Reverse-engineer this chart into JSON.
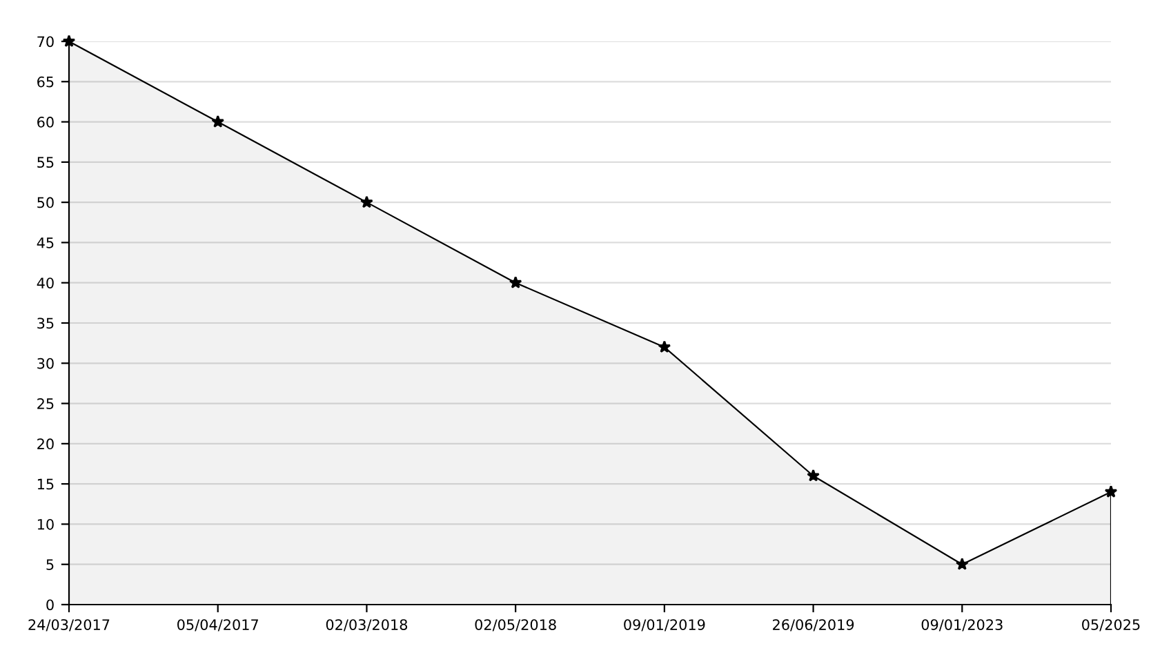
{
  "chart_data": {
    "type": "area",
    "categories": [
      "24/03/2017",
      "05/04/2017",
      "02/03/2018",
      "02/05/2018",
      "09/01/2019",
      "26/06/2019",
      "09/01/2023",
      "05/2025"
    ],
    "series": [
      {
        "color": "#000000",
        "values": [
          70,
          60,
          50,
          40,
          32,
          16,
          5,
          14
        ]
      }
    ],
    "ylim": [
      0,
      70
    ],
    "yticks": [
      0,
      5,
      10,
      15,
      20,
      25,
      30,
      35,
      40,
      45,
      50,
      55,
      60,
      65,
      70
    ],
    "grid": "y",
    "marker": "star",
    "line_style": "solid",
    "legend": false
  }
}
